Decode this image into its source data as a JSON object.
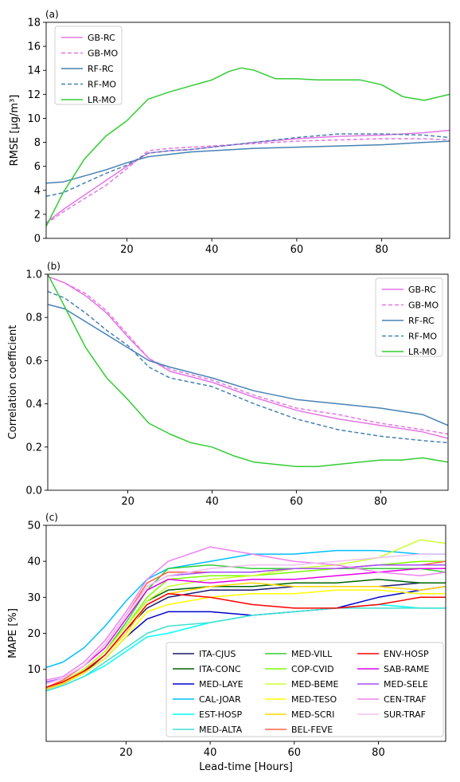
{
  "chart_data": [
    {
      "type": "line",
      "panel_label": "(a)",
      "xlabel": "",
      "ylabel": "RMSE [μg/m³]",
      "xlim": [
        1,
        96
      ],
      "ylim": [
        0,
        18
      ],
      "xticks": [
        20,
        40,
        60,
        80
      ],
      "yticks": [
        0,
        2,
        4,
        6,
        8,
        10,
        12,
        14,
        16,
        18
      ],
      "legend_position": "top-left",
      "series": [
        {
          "name": "GB-RC",
          "color": "#e377e3",
          "dash": "solid",
          "x": [
            1,
            5,
            10,
            15,
            20,
            25,
            30,
            35,
            40,
            50,
            60,
            70,
            80,
            90,
            96
          ],
          "y": [
            1.3,
            2.4,
            3.6,
            4.8,
            6.0,
            7.1,
            7.3,
            7.4,
            7.6,
            8.0,
            8.3,
            8.5,
            8.6,
            8.8,
            9.0
          ]
        },
        {
          "name": "GB-MO",
          "color": "#e377e3",
          "dash": "dashed",
          "x": [
            1,
            5,
            10,
            15,
            20,
            25,
            30,
            35,
            40,
            50,
            60,
            70,
            80,
            90,
            96
          ],
          "y": [
            1.2,
            2.2,
            3.3,
            4.4,
            5.8,
            7.3,
            7.5,
            7.6,
            7.7,
            7.9,
            8.1,
            8.2,
            8.3,
            8.3,
            8.2
          ]
        },
        {
          "name": "RF-RC",
          "color": "#4682b4",
          "dash": "solid",
          "x": [
            1,
            5,
            10,
            15,
            20,
            25,
            30,
            35,
            40,
            50,
            60,
            70,
            80,
            90,
            96
          ],
          "y": [
            4.6,
            4.7,
            5.2,
            5.7,
            6.3,
            6.8,
            7.0,
            7.2,
            7.3,
            7.5,
            7.6,
            7.7,
            7.8,
            8.0,
            8.1
          ]
        },
        {
          "name": "RF-MO",
          "color": "#4682b4",
          "dash": "dashed",
          "x": [
            1,
            5,
            10,
            15,
            20,
            25,
            30,
            35,
            40,
            50,
            60,
            70,
            80,
            90,
            96
          ],
          "y": [
            3.5,
            3.8,
            4.6,
            5.4,
            6.1,
            7.1,
            7.3,
            7.4,
            7.6,
            8.0,
            8.4,
            8.7,
            8.7,
            8.6,
            8.4
          ]
        },
        {
          "name": "LR-MO",
          "color": "#32cd32",
          "dash": "solid",
          "x": [
            1,
            5,
            10,
            15,
            20,
            25,
            30,
            35,
            40,
            44,
            47,
            50,
            55,
            60,
            65,
            70,
            75,
            80,
            85,
            90,
            96
          ],
          "y": [
            1.0,
            3.8,
            6.6,
            8.5,
            9.8,
            11.6,
            12.2,
            12.7,
            13.2,
            13.9,
            14.2,
            14.0,
            13.3,
            13.3,
            13.2,
            13.2,
            13.2,
            12.8,
            11.8,
            11.5,
            12.0
          ]
        }
      ]
    },
    {
      "type": "line",
      "panel_label": "(b)",
      "xlabel": "",
      "ylabel": "Correlation coefficient",
      "xlim": [
        1,
        96
      ],
      "ylim": [
        0.0,
        1.0
      ],
      "xticks": [
        20,
        40,
        60,
        80
      ],
      "yticks": [
        0.0,
        0.2,
        0.4,
        0.6,
        0.8,
        1.0
      ],
      "legend_position": "top-right",
      "series": [
        {
          "name": "GB-RC",
          "color": "#e377e3",
          "dash": "solid",
          "x": [
            1,
            5,
            10,
            15,
            20,
            25,
            30,
            40,
            50,
            60,
            70,
            80,
            90,
            96
          ],
          "y": [
            0.99,
            0.96,
            0.9,
            0.82,
            0.71,
            0.61,
            0.55,
            0.5,
            0.43,
            0.37,
            0.33,
            0.3,
            0.27,
            0.24
          ]
        },
        {
          "name": "GB-MO",
          "color": "#e377e3",
          "dash": "dashed",
          "x": [
            1,
            5,
            10,
            15,
            20,
            25,
            30,
            40,
            50,
            60,
            70,
            80,
            90,
            96
          ],
          "y": [
            0.99,
            0.96,
            0.91,
            0.83,
            0.72,
            0.61,
            0.56,
            0.51,
            0.44,
            0.38,
            0.35,
            0.31,
            0.28,
            0.26
          ]
        },
        {
          "name": "RF-RC",
          "color": "#4682b4",
          "dash": "solid",
          "x": [
            1,
            5,
            10,
            15,
            20,
            25,
            30,
            40,
            50,
            60,
            70,
            80,
            90,
            96
          ],
          "y": [
            0.86,
            0.84,
            0.78,
            0.72,
            0.66,
            0.6,
            0.57,
            0.52,
            0.46,
            0.42,
            0.4,
            0.38,
            0.35,
            0.3
          ]
        },
        {
          "name": "RF-MO",
          "color": "#4682b4",
          "dash": "dashed",
          "x": [
            1,
            5,
            10,
            15,
            20,
            25,
            30,
            40,
            50,
            60,
            70,
            80,
            90,
            96
          ],
          "y": [
            0.92,
            0.89,
            0.82,
            0.74,
            0.67,
            0.57,
            0.52,
            0.48,
            0.4,
            0.33,
            0.28,
            0.25,
            0.23,
            0.22
          ]
        },
        {
          "name": "LR-MO",
          "color": "#32cd32",
          "dash": "solid",
          "x": [
            1,
            5,
            10,
            15,
            20,
            25,
            30,
            35,
            40,
            45,
            50,
            55,
            60,
            65,
            70,
            75,
            80,
            85,
            90,
            96
          ],
          "y": [
            1.0,
            0.85,
            0.66,
            0.52,
            0.42,
            0.31,
            0.26,
            0.22,
            0.2,
            0.16,
            0.13,
            0.12,
            0.11,
            0.11,
            0.12,
            0.13,
            0.14,
            0.14,
            0.15,
            0.13
          ]
        }
      ]
    },
    {
      "type": "line",
      "panel_label": "(c)",
      "xlabel": "Lead-time [Hours]",
      "ylabel": "MAPE [%]",
      "xlim": [
        1,
        96
      ],
      "ylim": [
        -10,
        50
      ],
      "xticks": [
        20,
        40,
        60,
        80
      ],
      "yticks": [
        10,
        20,
        30,
        40,
        50
      ],
      "legend_position": "lower-right",
      "legend_columns": 3,
      "series": [
        {
          "name": "ITA-CJUS",
          "color": "#191970",
          "x": [
            1,
            5,
            10,
            15,
            20,
            25,
            30,
            40,
            50,
            60,
            70,
            80,
            90,
            96
          ],
          "y": [
            4.5,
            6,
            9,
            14,
            21,
            27,
            30,
            32,
            32,
            33,
            33,
            33,
            34,
            34
          ]
        },
        {
          "name": "ITA-CONC",
          "color": "#006400",
          "x": [
            1,
            5,
            10,
            15,
            20,
            25,
            30,
            40,
            50,
            60,
            70,
            80,
            90,
            96
          ],
          "y": [
            5,
            6.5,
            10,
            15,
            22,
            29,
            32,
            33,
            33,
            34,
            34,
            35,
            34,
            34
          ]
        },
        {
          "name": "MED-LAYE",
          "color": "#0000cd",
          "x": [
            1,
            5,
            10,
            15,
            20,
            25,
            30,
            40,
            50,
            60,
            70,
            80,
            90,
            96
          ],
          "y": [
            4.5,
            6,
            9,
            13,
            19,
            24,
            26,
            26,
            25,
            26,
            27,
            30,
            32,
            33
          ]
        },
        {
          "name": "CAL-JOAR",
          "color": "#00bfff",
          "x": [
            1,
            5,
            10,
            15,
            20,
            25,
            30,
            40,
            50,
            60,
            70,
            80,
            90,
            96
          ],
          "y": [
            10.5,
            12,
            16,
            22,
            29,
            35,
            38,
            40,
            42,
            42,
            43,
            43,
            42,
            42
          ]
        },
        {
          "name": "EST-HOSP",
          "color": "#00ffff",
          "x": [
            1,
            5,
            10,
            15,
            20,
            25,
            30,
            40,
            50,
            60,
            70,
            80,
            90,
            96
          ],
          "y": [
            4,
            5.5,
            8,
            11,
            15,
            19,
            20,
            23,
            25,
            26,
            27,
            28,
            27,
            27
          ]
        },
        {
          "name": "MED-ALTA",
          "color": "#40e0d0",
          "x": [
            1,
            5,
            10,
            15,
            20,
            25,
            30,
            40,
            50,
            60,
            70,
            80,
            90,
            96
          ],
          "y": [
            4,
            5.5,
            8,
            12,
            16,
            20,
            22,
            23,
            25,
            26,
            27,
            27,
            27,
            27
          ]
        },
        {
          "name": "MED-VILL",
          "color": "#32cd32",
          "x": [
            1,
            5,
            10,
            15,
            20,
            25,
            30,
            40,
            50,
            60,
            70,
            80,
            90,
            96
          ],
          "y": [
            5,
            6.5,
            10,
            15,
            23,
            32,
            38,
            39,
            38,
            38,
            38,
            38,
            38,
            37
          ]
        },
        {
          "name": "COP-CVID",
          "color": "#7cfc00",
          "x": [
            1,
            5,
            10,
            15,
            20,
            25,
            30,
            40,
            50,
            60,
            70,
            80,
            90,
            96
          ],
          "y": [
            5,
            6.5,
            10,
            15,
            22,
            30,
            35,
            36,
            36,
            37,
            38,
            39,
            40,
            40
          ]
        },
        {
          "name": "MED-BEME",
          "color": "#ccff33",
          "x": [
            1,
            5,
            10,
            15,
            20,
            25,
            30,
            40,
            50,
            60,
            70,
            80,
            90,
            96
          ],
          "y": [
            5,
            6.5,
            10,
            15,
            22,
            29,
            33,
            35,
            36,
            38,
            39,
            41,
            46,
            45
          ]
        },
        {
          "name": "MED-TESO",
          "color": "#ffff00",
          "x": [
            1,
            5,
            10,
            15,
            20,
            25,
            30,
            40,
            50,
            60,
            70,
            80,
            90,
            96
          ],
          "y": [
            4.5,
            6,
            9,
            13,
            19,
            26,
            28,
            30,
            31,
            31,
            32,
            32,
            31,
            31
          ]
        },
        {
          "name": "MED-SCRI",
          "color": "#ffd700",
          "x": [
            1,
            5,
            10,
            15,
            20,
            25,
            30,
            40,
            50,
            60,
            70,
            80,
            90,
            96
          ],
          "y": [
            4.5,
            6,
            9.5,
            14,
            20,
            28,
            31,
            33,
            34,
            33,
            33,
            33,
            32,
            33
          ]
        },
        {
          "name": "BEL-FEVE",
          "color": "#ff6347",
          "x": [
            1,
            5,
            10,
            15,
            20,
            25,
            30,
            40,
            50,
            60,
            70,
            80,
            90,
            96
          ],
          "y": [
            5,
            7,
            11,
            17,
            25,
            34,
            37,
            37,
            37,
            38,
            38,
            39,
            39,
            40
          ]
        },
        {
          "name": "ENV-HOSP",
          "color": "#ff0000",
          "x": [
            1,
            5,
            10,
            15,
            20,
            25,
            30,
            40,
            50,
            60,
            70,
            80,
            90,
            96
          ],
          "y": [
            5,
            6.5,
            9.5,
            14,
            21,
            28,
            31,
            30,
            28,
            27,
            27,
            28,
            30,
            30
          ]
        },
        {
          "name": "SAB-RAME",
          "color": "#e600e6",
          "x": [
            1,
            5,
            10,
            15,
            20,
            25,
            30,
            40,
            50,
            60,
            70,
            80,
            90,
            96
          ],
          "y": [
            6,
            7.5,
            11,
            16,
            24,
            32,
            35,
            34,
            35,
            35,
            36,
            37,
            38,
            38
          ]
        },
        {
          "name": "MED-SELE",
          "color": "#a64dff",
          "x": [
            1,
            5,
            10,
            15,
            20,
            25,
            30,
            40,
            50,
            60,
            70,
            80,
            90,
            96
          ],
          "y": [
            6.5,
            7.5,
            11,
            17,
            25,
            33,
            36,
            37,
            37,
            38,
            38,
            39,
            39,
            39
          ]
        },
        {
          "name": "CEN-TRAF",
          "color": "#ee82ee",
          "x": [
            1,
            5,
            10,
            15,
            20,
            25,
            30,
            40,
            50,
            60,
            70,
            80,
            90,
            96
          ],
          "y": [
            7,
            8,
            12,
            18,
            26,
            35,
            40,
            44,
            42,
            40,
            39,
            37,
            36,
            37
          ]
        },
        {
          "name": "SUR-TRAF",
          "color": "#f0c0f0",
          "x": [
            1,
            5,
            10,
            15,
            20,
            25,
            30,
            40,
            50,
            60,
            70,
            80,
            90,
            96
          ],
          "y": [
            6,
            7.5,
            11,
            17,
            25,
            33,
            36,
            38,
            39,
            39,
            40,
            41,
            42,
            42
          ]
        }
      ]
    }
  ]
}
